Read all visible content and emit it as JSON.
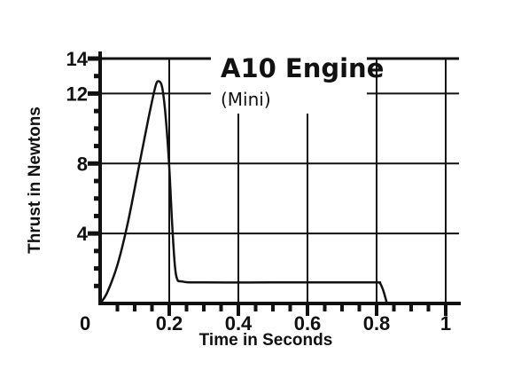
{
  "chart_data": {
    "type": "line",
    "title": "A10 Engine",
    "subtitle": "(Mini)",
    "xlabel": "Time in Seconds",
    "ylabel": "Thrust in Newtons",
    "xlim": [
      0,
      1
    ],
    "ylim": [
      0,
      14
    ],
    "x_ticks": [
      {
        "value": 0,
        "label": "0"
      },
      {
        "value": 0.2,
        "label": "0.2"
      },
      {
        "value": 0.4,
        "label": "0.4"
      },
      {
        "value": 0.6,
        "label": "0.6"
      },
      {
        "value": 0.8,
        "label": "0.8"
      },
      {
        "value": 1,
        "label": "1"
      }
    ],
    "y_ticks": [
      {
        "value": 4,
        "label": "4"
      },
      {
        "value": 8,
        "label": "8"
      },
      {
        "value": 12,
        "label": "12"
      },
      {
        "value": 14,
        "label": "14"
      }
    ],
    "grid": true,
    "series": [
      {
        "color": "#111111",
        "x": [
          0,
          0.02,
          0.05,
          0.08,
          0.11,
          0.14,
          0.16,
          0.17,
          0.18,
          0.19,
          0.2,
          0.21,
          0.22,
          0.24,
          0.3,
          0.5,
          0.7,
          0.8,
          0.81,
          0.82,
          0.83
        ],
        "y": [
          0,
          0.6,
          2.2,
          4.6,
          7.6,
          10.6,
          12.4,
          12.7,
          12.3,
          10.6,
          7.8,
          4.0,
          1.6,
          1.25,
          1.2,
          1.2,
          1.2,
          1.2,
          1.15,
          0.7,
          0
        ]
      }
    ]
  }
}
